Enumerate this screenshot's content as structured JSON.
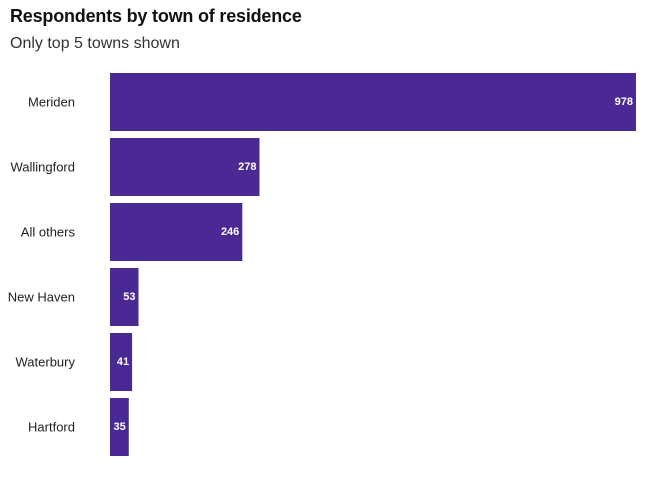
{
  "chart_data": {
    "type": "bar",
    "orientation": "horizontal",
    "title": "Respondents by town of residence",
    "subtitle": "Only top 5 towns shown",
    "categories": [
      "Meriden",
      "Wallingford",
      "All others",
      "New Haven",
      "Waterbury",
      "Hartford"
    ],
    "values": [
      978,
      278,
      246,
      53,
      41,
      35
    ],
    "xlim": [
      0,
      978
    ],
    "grid": false,
    "legend": "none",
    "bar_color": "#4b2994",
    "value_label_color": "#ffffff"
  }
}
